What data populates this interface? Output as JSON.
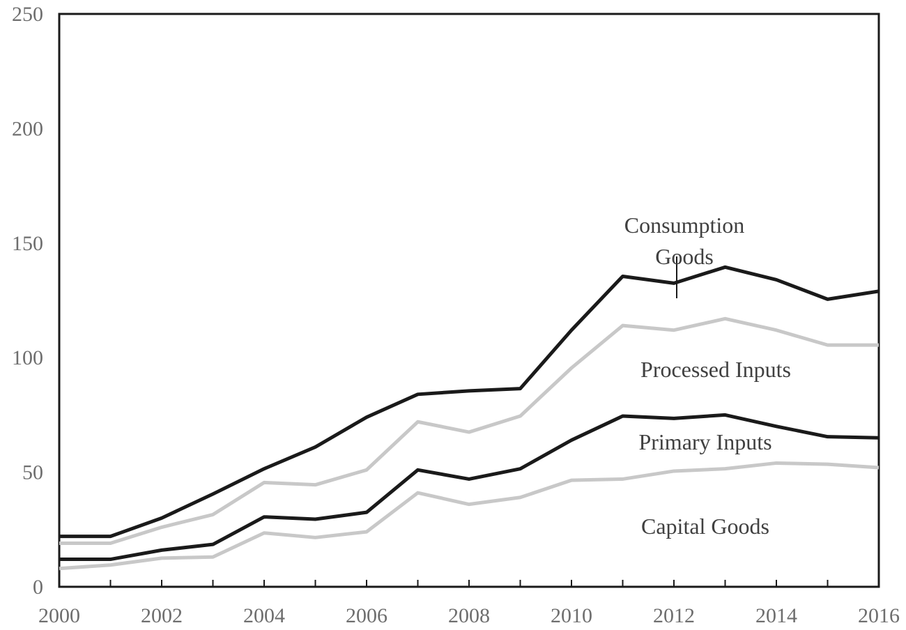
{
  "chart_data": {
    "type": "line",
    "title": "",
    "xlabel": "",
    "ylabel": "",
    "x": [
      2000,
      2001,
      2002,
      2003,
      2004,
      2005,
      2006,
      2007,
      2008,
      2009,
      2010,
      2011,
      2012,
      2013,
      2014,
      2015,
      2016
    ],
    "xlim": [
      2000,
      2016
    ],
    "ylim": [
      0,
      250
    ],
    "x_ticks": [
      "2000",
      "2002",
      "2004",
      "2006",
      "2008",
      "2010",
      "2012",
      "2014",
      "2016"
    ],
    "y_ticks": [
      "0",
      "50",
      "100",
      "150",
      "200",
      "250"
    ],
    "grid": false,
    "legend": "inline annotations",
    "series": [
      {
        "name": "Consumption Goods",
        "color": "#1a1a1a",
        "values": [
          22,
          22,
          30,
          40.5,
          51.5,
          61,
          74,
          84,
          85.5,
          86.5,
          112,
          135.5,
          132.5,
          139.5,
          134,
          125.5,
          129
        ]
      },
      {
        "name": "Processed Inputs",
        "color": "#c8c8c8",
        "values": [
          19,
          19,
          26,
          31.5,
          45.5,
          44.5,
          51,
          72,
          67.5,
          74.5,
          95.5,
          114,
          112,
          117,
          112,
          105.5,
          105.5
        ]
      },
      {
        "name": "Primary Inputs",
        "color": "#1a1a1a",
        "values": [
          12,
          12,
          16,
          18.5,
          30.5,
          29.5,
          32.5,
          51,
          47,
          51.5,
          64,
          74.5,
          73.5,
          75,
          70,
          65.5,
          65
        ]
      },
      {
        "name": "Capital Goods",
        "color": "#c8c8c8",
        "values": [
          8,
          9.5,
          12.5,
          13,
          23.5,
          21.5,
          24,
          41,
          36,
          39,
          46.5,
          47,
          50.5,
          51.5,
          54,
          53.5,
          52
        ]
      }
    ],
    "annotations": [
      {
        "series": "Consumption Goods",
        "lines": [
          "Consumption",
          "Goods"
        ]
      },
      {
        "series": "Processed Inputs",
        "lines": [
          "Processed Inputs"
        ]
      },
      {
        "series": "Primary Inputs",
        "lines": [
          "Primary Inputs"
        ]
      },
      {
        "series": "Capital Goods",
        "lines": [
          "Capital Goods"
        ]
      }
    ]
  }
}
